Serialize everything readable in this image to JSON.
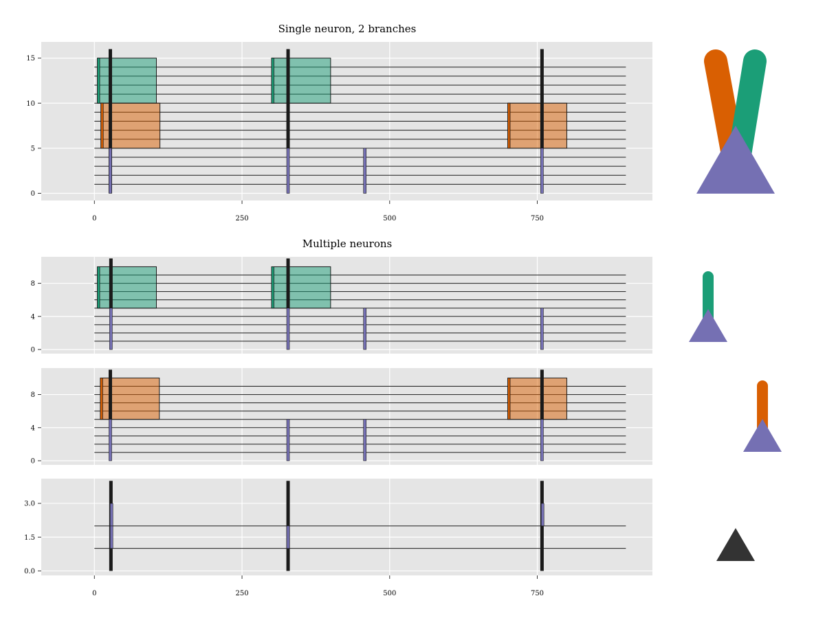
{
  "chart_data": [
    {
      "type": "raster-timeline",
      "title": "Single neuron, 2 branches",
      "xlabel": "",
      "ylabel": "",
      "xlim": [
        -90,
        945
      ],
      "ylim": [
        -0.8,
        16.8
      ],
      "x_ticks": [
        0,
        250,
        500,
        750
      ],
      "y_ticks": [
        0,
        5,
        10,
        15
      ],
      "grid": true,
      "trace_rows": [
        1,
        2,
        3,
        4,
        5,
        6,
        7,
        8,
        9,
        10,
        11,
        12,
        13,
        14
      ],
      "trace_x_range": [
        0,
        900
      ],
      "blocks": [
        {
          "color": "#1b9e77",
          "x": [
            5,
            105
          ],
          "y": [
            10,
            15
          ],
          "onset_width": 4
        },
        {
          "color": "#1b9e77",
          "x": [
            300,
            400
          ],
          "y": [
            10,
            15
          ],
          "onset_width": 4
        },
        {
          "color": "#d95f02",
          "x": [
            11,
            111
          ],
          "y": [
            5,
            10
          ],
          "onset_width": 4
        },
        {
          "color": "#d95f02",
          "x": [
            700,
            800
          ],
          "y": [
            5,
            10
          ],
          "onset_width": 4
        }
      ],
      "spikes": [
        {
          "x": 27,
          "y": [
            0,
            5
          ],
          "color": "#7570b3"
        },
        {
          "x": 328,
          "y": [
            0,
            5
          ],
          "color": "#7570b3"
        },
        {
          "x": 458,
          "y": [
            0,
            5
          ],
          "color": "#7570b3"
        },
        {
          "x": 758,
          "y": [
            0,
            5
          ],
          "color": "#7570b3"
        }
      ],
      "events": [
        {
          "x": 27,
          "y": [
            0,
            16
          ]
        },
        {
          "x": 328,
          "y": [
            5,
            16
          ]
        },
        {
          "x": 758,
          "y": [
            5,
            16
          ]
        }
      ],
      "icon": "two-branch-neuron"
    },
    {
      "type": "raster-timeline",
      "title": "Multiple neurons",
      "xlabel": "",
      "ylabel": "",
      "xlim": [
        -90,
        945
      ],
      "ylim": [
        -0.5,
        11.2
      ],
      "x_ticks": [],
      "y_ticks": [
        0,
        4,
        8
      ],
      "grid": true,
      "trace_rows": [
        1,
        2,
        3,
        4,
        5,
        6,
        7,
        8,
        9
      ],
      "trace_x_range": [
        0,
        900
      ],
      "blocks": [
        {
          "color": "#1b9e77",
          "x": [
            5,
            105
          ],
          "y": [
            5,
            10
          ],
          "onset_width": 4
        },
        {
          "color": "#1b9e77",
          "x": [
            300,
            400
          ],
          "y": [
            5,
            10
          ],
          "onset_width": 4
        }
      ],
      "spikes": [
        {
          "x": 28,
          "y": [
            0,
            5
          ],
          "color": "#7570b3"
        },
        {
          "x": 328,
          "y": [
            0,
            5
          ],
          "color": "#7570b3"
        },
        {
          "x": 458,
          "y": [
            0,
            5
          ],
          "color": "#7570b3"
        },
        {
          "x": 758,
          "y": [
            0,
            5
          ],
          "color": "#7570b3"
        }
      ],
      "events": [
        {
          "x": 28,
          "y": [
            5,
            11
          ]
        },
        {
          "x": 328,
          "y": [
            5,
            11
          ]
        }
      ],
      "icon": "green-neuron"
    },
    {
      "type": "raster-timeline",
      "title": "",
      "xlabel": "",
      "ylabel": "",
      "xlim": [
        -90,
        945
      ],
      "ylim": [
        -0.5,
        11.2
      ],
      "x_ticks": [],
      "y_ticks": [
        0,
        4,
        8
      ],
      "grid": true,
      "trace_rows": [
        1,
        2,
        3,
        4,
        5,
        6,
        7,
        8,
        9
      ],
      "trace_x_range": [
        0,
        900
      ],
      "blocks": [
        {
          "color": "#d95f02",
          "x": [
            10,
            110
          ],
          "y": [
            5,
            10
          ],
          "onset_width": 4
        },
        {
          "color": "#d95f02",
          "x": [
            700,
            800
          ],
          "y": [
            5,
            10
          ],
          "onset_width": 4
        }
      ],
      "spikes": [
        {
          "x": 27,
          "y": [
            0,
            5
          ],
          "color": "#7570b3"
        },
        {
          "x": 328,
          "y": [
            0,
            5
          ],
          "color": "#7570b3"
        },
        {
          "x": 458,
          "y": [
            0,
            5
          ],
          "color": "#7570b3"
        },
        {
          "x": 758,
          "y": [
            0,
            5
          ],
          "color": "#7570b3"
        }
      ],
      "events": [
        {
          "x": 27,
          "y": [
            5,
            11
          ]
        },
        {
          "x": 758,
          "y": [
            5,
            11
          ]
        }
      ],
      "icon": "orange-neuron"
    },
    {
      "type": "raster-timeline",
      "title": "",
      "xlabel": "",
      "ylabel": "",
      "xlim": [
        -90,
        945
      ],
      "ylim": [
        -0.2,
        4.1
      ],
      "x_ticks": [
        0,
        250,
        500,
        750
      ],
      "y_ticks": [
        0,
        1.5,
        3
      ],
      "y_tick_labels": [
        "0.0",
        "1.5",
        "3.0"
      ],
      "grid": true,
      "trace_rows": [
        1,
        2
      ],
      "trace_x_range": [
        0,
        900
      ],
      "blocks": [],
      "spikes": [
        {
          "x": 29,
          "y": [
            1,
            2
          ],
          "color": "#7570b3"
        },
        {
          "x": 29,
          "y": [
            2,
            3
          ],
          "color": "#7570b3"
        },
        {
          "x": 328,
          "y": [
            1,
            2
          ],
          "color": "#7570b3"
        },
        {
          "x": 759,
          "y": [
            2,
            3
          ],
          "color": "#7570b3"
        }
      ],
      "events": [
        {
          "x": 28,
          "y": [
            0,
            4
          ]
        },
        {
          "x": 328,
          "y": [
            0,
            4
          ]
        },
        {
          "x": 758,
          "y": [
            0,
            4
          ]
        }
      ],
      "icon": "soma-only"
    }
  ],
  "colors": {
    "panel_bg": "#e5e5e5",
    "grid": "#ffffff",
    "trace": "#1a1a1a",
    "green": "#1b9e77",
    "orange": "#d95f02",
    "purple": "#7570b3",
    "event": "#1a1a1a",
    "soma_dark": "#333333"
  }
}
